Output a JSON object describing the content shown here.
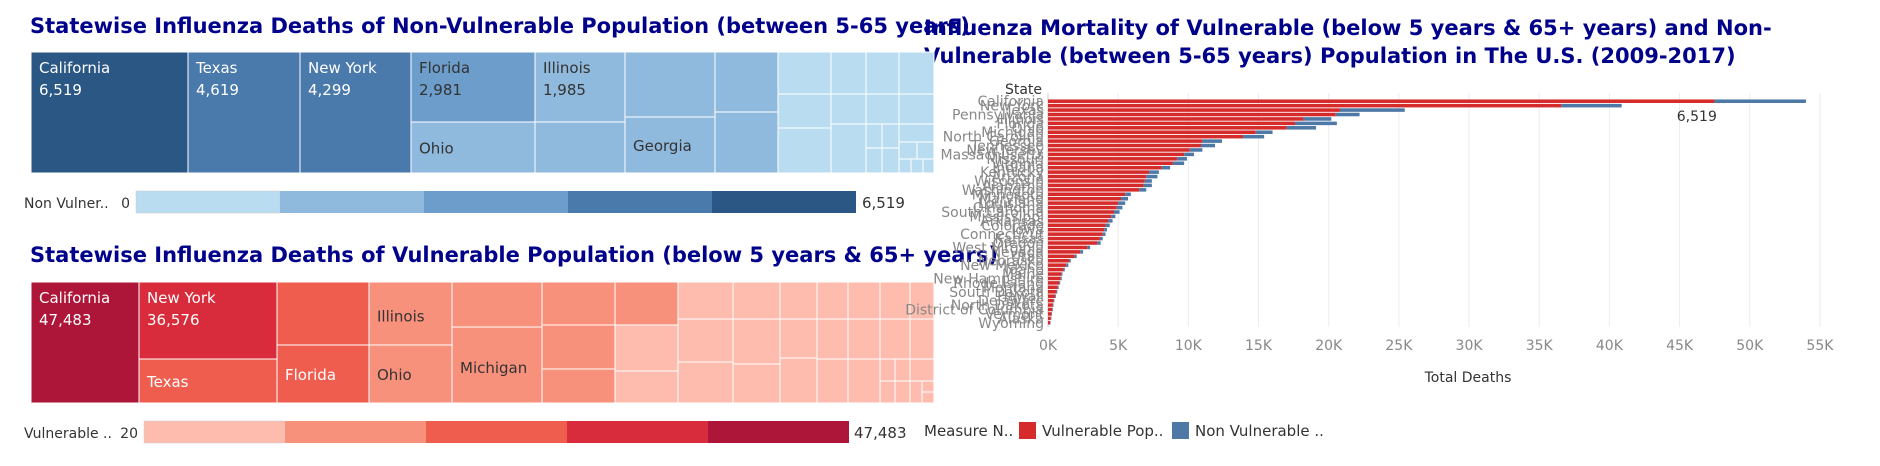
{
  "titles": {
    "left_top": "Statewise Influenza Deaths of Non-Vulnerable Population (between 5-65 years)",
    "left_bottom": "Statewise Influenza Deaths of Vulnerable Population (below 5 years & 65+ years)",
    "right": "Influenza Mortality of Vulnerable (below 5 years & 65+ years) and Non-Vulnerable (between 5-65 years) Population in The U.S. (2009-2017)"
  },
  "colors": {
    "blue_ramp": [
      "#b9dcf0",
      "#8fbadd",
      "#6c9dcb",
      "#4a79ab",
      "#2a5784"
    ],
    "red_ramp": [
      "#fdbcae",
      "#f8917c",
      "#ef5d4f",
      "#d82b3b",
      "#ad1539"
    ],
    "vulnerable": "#d62b2b",
    "non_vulnerable": "#4e79a7",
    "axis_text": "#888888",
    "label_text": "#333333"
  },
  "legends": {
    "non_vulnerable": {
      "label": "Non Vulner..",
      "min": "0",
      "max": "6,519"
    },
    "vulnerable": {
      "label": "Vulnerable ..",
      "min": "20",
      "max": "47,483"
    },
    "measure": {
      "label": "Measure N..",
      "items": [
        "Vulnerable Pop..",
        "Non Vulnerable .."
      ]
    }
  },
  "chart_data": [
    {
      "type": "treemap",
      "title": "Statewise Influenza Deaths of Non-Vulnerable Population (between 5-65 years)",
      "labeled_tiles": [
        {
          "name": "California",
          "value": 6519,
          "value_label": "6,519"
        },
        {
          "name": "Texas",
          "value": 4619,
          "value_label": "4,619"
        },
        {
          "name": "New York",
          "value": 4299,
          "value_label": "4,299"
        },
        {
          "name": "Florida",
          "value": 2981,
          "value_label": "2,981"
        },
        {
          "name": "Illinois",
          "value": 1985,
          "value_label": "1,985"
        },
        {
          "name": "Ohio"
        },
        {
          "name": "Georgia"
        }
      ],
      "color_range": [
        0,
        6519
      ]
    },
    {
      "type": "treemap",
      "title": "Statewise Influenza Deaths of Vulnerable Population (below 5 years & 65+ years)",
      "labeled_tiles": [
        {
          "name": "California",
          "value": 47483,
          "value_label": "47,483"
        },
        {
          "name": "New York",
          "value": 36576,
          "value_label": "36,576"
        },
        {
          "name": "Texas"
        },
        {
          "name": "Florida"
        },
        {
          "name": "Illinois"
        },
        {
          "name": "Ohio"
        },
        {
          "name": "Michigan"
        }
      ],
      "color_range": [
        20,
        47483
      ]
    },
    {
      "type": "bar",
      "orientation": "horizontal",
      "stacked": true,
      "title": "Influenza Mortality of Vulnerable (below 5 years & 65+ years) and Non-Vulnerable (between 5-65 years) Population in The U.S. (2009-2017)",
      "ylabel": "State",
      "xlabel": "Total Deaths",
      "xlim": [
        0,
        57000
      ],
      "xticks": [
        0,
        5000,
        10000,
        15000,
        20000,
        25000,
        30000,
        35000,
        40000,
        45000,
        50000,
        55000
      ],
      "xtick_labels": [
        "0K",
        "5K",
        "10K",
        "15K",
        "20K",
        "25K",
        "30K",
        "35K",
        "40K",
        "45K",
        "50K",
        "55K"
      ],
      "annotation": "6,519",
      "categories": [
        "California",
        "New York",
        "Texas",
        "Pennsylvania",
        "Illinois",
        "Florida",
        "Ohio",
        "Michigan",
        "North Carolina",
        "Georgia",
        "Tennessee",
        "New Jersey",
        "Massachusetts",
        "Missouri",
        "Virginia",
        "Indiana",
        "Kentucky",
        "Arizona",
        "Wisconsin",
        "Alabama",
        "Washington",
        "Minnesota",
        "Maryland",
        "Louisiana",
        "Oklahoma",
        "South Carolina",
        "Mississippi",
        "Arkansas",
        "Colorado",
        "Iowa",
        "Connecticut",
        "Kansas",
        "Oregon",
        "West Virginia",
        "Nevada",
        "Utah",
        "Nebraska",
        "New Mexico",
        "Idaho",
        "Maine",
        "New Hampshire",
        "Rhode Island",
        "Montana",
        "South Dakota",
        "Hawaii",
        "Delaware",
        "North Dakota",
        "District of Columbia",
        "Vermont",
        "Alaska",
        "Wyoming"
      ],
      "series": [
        {
          "name": "Vulnerable Population",
          "values": [
            47483,
            36576,
            20800,
            20500,
            18200,
            17600,
            17000,
            14800,
            13900,
            11000,
            10900,
            10100,
            9700,
            9200,
            8900,
            8100,
            7200,
            7000,
            6900,
            6800,
            6500,
            5500,
            5200,
            5000,
            4900,
            4700,
            4500,
            4300,
            4100,
            4000,
            3900,
            3700,
            3500,
            2800,
            2300,
            1900,
            1500,
            1300,
            1100,
            950,
            900,
            800,
            700,
            600,
            500,
            400,
            350,
            300,
            250,
            200,
            150
          ]
        },
        {
          "name": "Non Vulnerable Population",
          "values": [
            6519,
            4299,
            4619,
            1700,
            1985,
            2981,
            2100,
            1200,
            1500,
            1400,
            1000,
            900,
            700,
            700,
            800,
            600,
            700,
            800,
            500,
            600,
            500,
            400,
            500,
            500,
            400,
            400,
            300,
            300,
            300,
            200,
            200,
            200,
            250,
            200,
            200,
            150,
            120,
            150,
            100,
            80,
            80,
            70,
            60,
            60,
            60,
            50,
            40,
            50,
            30,
            40,
            30
          ]
        }
      ]
    }
  ]
}
